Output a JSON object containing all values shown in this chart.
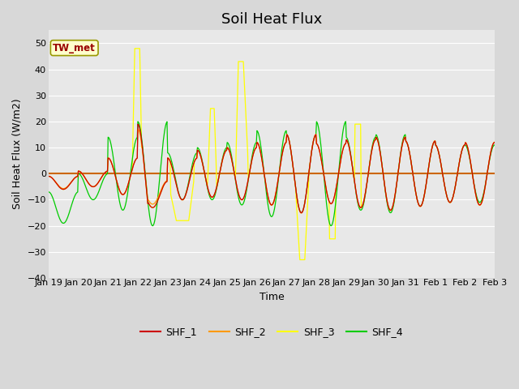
{
  "title": "Soil Heat Flux",
  "ylabel": "Soil Heat Flux (W/m2)",
  "xlabel": "Time",
  "annotation": "TW_met",
  "ylim": [
    -40,
    55
  ],
  "yticks": [
    -40,
    -30,
    -20,
    -10,
    0,
    10,
    20,
    30,
    40,
    50
  ],
  "n_days": 15,
  "line_colors": {
    "SHF_1": "#cc0000",
    "SHF_2": "#ff9900",
    "SHF_3": "#ffff00",
    "SHF_4": "#00cc00"
  },
  "background_color": "#d8d8d8",
  "plot_bg_color": "#e8e8e8",
  "grid_color": "#ffffff",
  "zero_line_color": "#cc6600",
  "title_fontsize": 13,
  "axis_label_fontsize": 9,
  "tick_fontsize": 8
}
